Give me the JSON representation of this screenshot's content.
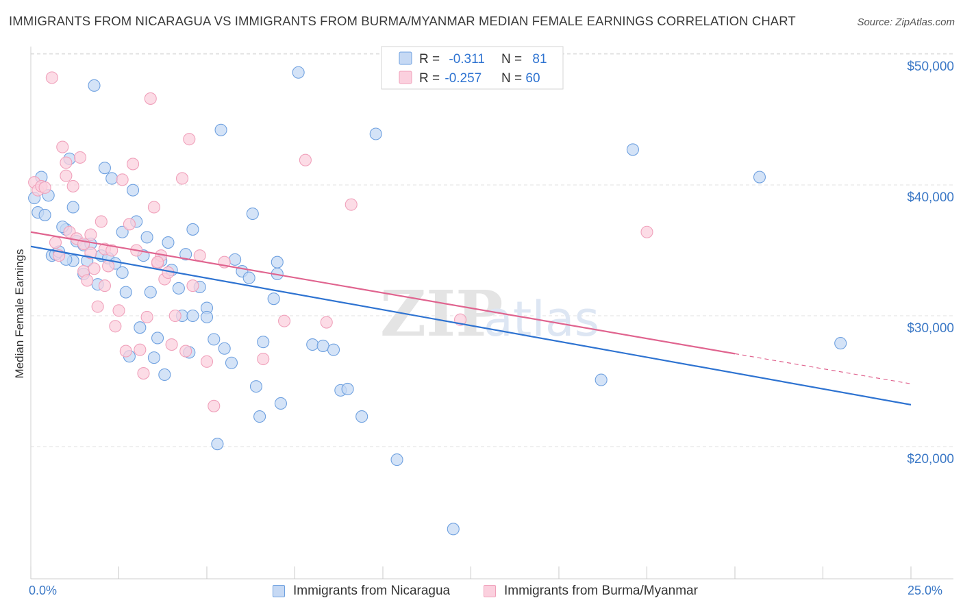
{
  "title": "IMMIGRANTS FROM NICARAGUA VS IMMIGRANTS FROM BURMA/MYANMAR MEDIAN FEMALE EARNINGS CORRELATION CHART",
  "source": "Source: ZipAtlas.com",
  "watermark": {
    "zip": "ZIP",
    "atlas": "atlas"
  },
  "stats_legend": [
    {
      "r_label": "R = ",
      "r_value": "-0.311",
      "n_label": "N = ",
      "n_value": "81"
    },
    {
      "r_label": "R = ",
      "r_value": "-0.257",
      "n_label": "N = ",
      "n_value": "60"
    }
  ],
  "x_axis": {
    "min_label": "0.0%",
    "max_label": "25.0%"
  },
  "chart_data": {
    "type": "scatter",
    "title": "IMMIGRANTS FROM NICARAGUA VS IMMIGRANTS FROM BURMA/MYANMAR MEDIAN FEMALE EARNINGS CORRELATION CHART",
    "xlabel": "",
    "ylabel": "Median Female Earnings",
    "xlim": [
      0,
      25
    ],
    "ylim": [
      11000,
      52000
    ],
    "y_ticks": [
      {
        "value": 20000,
        "label": "$20,000"
      },
      {
        "value": 30000,
        "label": "$30,000"
      },
      {
        "value": 40000,
        "label": "$40,000"
      },
      {
        "value": 50000,
        "label": "$50,000"
      }
    ],
    "legend_position": "bottom",
    "grid": true,
    "series": [
      {
        "name": "Immigrants from Nicaragua",
        "color": "#6fa1e0",
        "fill": "#c6d9f4",
        "trend_color": "#2e73d1",
        "trend": {
          "x_start": 0,
          "y_start": 35300,
          "x_end": 25,
          "y_end": 23200
        },
        "points": [
          [
            0.1,
            39000
          ],
          [
            0.2,
            37900
          ],
          [
            0.3,
            40600
          ],
          [
            0.4,
            37700
          ],
          [
            0.5,
            39200
          ],
          [
            0.6,
            34600
          ],
          [
            0.7,
            34700
          ],
          [
            0.8,
            34900
          ],
          [
            1.0,
            36600
          ],
          [
            1.1,
            42000
          ],
          [
            1.2,
            38300
          ],
          [
            1.2,
            34200
          ],
          [
            1.3,
            35700
          ],
          [
            1.5,
            33200
          ],
          [
            1.5,
            35400
          ],
          [
            1.6,
            34200
          ],
          [
            1.7,
            35500
          ],
          [
            1.8,
            47600
          ],
          [
            1.9,
            32400
          ],
          [
            2.0,
            34600
          ],
          [
            2.1,
            41300
          ],
          [
            2.2,
            34400
          ],
          [
            2.3,
            40500
          ],
          [
            2.4,
            34000
          ],
          [
            2.6,
            36400
          ],
          [
            2.6,
            33300
          ],
          [
            2.7,
            31800
          ],
          [
            2.8,
            26900
          ],
          [
            2.9,
            39600
          ],
          [
            3.0,
            37200
          ],
          [
            3.1,
            29100
          ],
          [
            3.2,
            34600
          ],
          [
            3.3,
            36000
          ],
          [
            3.4,
            31800
          ],
          [
            3.5,
            26800
          ],
          [
            3.6,
            28300
          ],
          [
            3.7,
            34200
          ],
          [
            3.8,
            25500
          ],
          [
            3.9,
            35600
          ],
          [
            4.0,
            33500
          ],
          [
            4.2,
            32100
          ],
          [
            4.3,
            30000
          ],
          [
            4.4,
            34700
          ],
          [
            4.5,
            27200
          ],
          [
            4.6,
            36600
          ],
          [
            4.6,
            30000
          ],
          [
            4.8,
            32200
          ],
          [
            5.0,
            30600
          ],
          [
            5.0,
            29900
          ],
          [
            5.2,
            28200
          ],
          [
            5.3,
            20200
          ],
          [
            5.4,
            44200
          ],
          [
            5.5,
            27500
          ],
          [
            5.7,
            26400
          ],
          [
            5.8,
            34300
          ],
          [
            6.0,
            33400
          ],
          [
            6.2,
            32900
          ],
          [
            6.3,
            37800
          ],
          [
            6.4,
            24600
          ],
          [
            6.5,
            22300
          ],
          [
            6.6,
            28000
          ],
          [
            6.9,
            31300
          ],
          [
            7.0,
            34100
          ],
          [
            7.0,
            33200
          ],
          [
            7.1,
            23300
          ],
          [
            7.6,
            48600
          ],
          [
            8.0,
            27800
          ],
          [
            8.3,
            27700
          ],
          [
            8.6,
            27400
          ],
          [
            8.8,
            24300
          ],
          [
            9.0,
            24400
          ],
          [
            9.4,
            22300
          ],
          [
            9.8,
            43900
          ],
          [
            10.4,
            19000
          ],
          [
            12.0,
            13700
          ],
          [
            16.2,
            25100
          ],
          [
            17.1,
            42700
          ],
          [
            20.7,
            40600
          ],
          [
            23.0,
            27900
          ],
          [
            0.9,
            36800
          ],
          [
            1.0,
            34300
          ]
        ]
      },
      {
        "name": "Immigrants from Burma/Myanmar",
        "color": "#f0a1bb",
        "fill": "#fbd0de",
        "trend_color": "#e0648f",
        "trend": {
          "x_start": 0,
          "y_start": 36400,
          "x_end": 20.0,
          "y_end": 27100,
          "dashed_x_end": 25,
          "dashed_y_end": 24800
        },
        "points": [
          [
            0.1,
            40200
          ],
          [
            0.2,
            39600
          ],
          [
            0.3,
            39900
          ],
          [
            0.4,
            39800
          ],
          [
            0.6,
            48200
          ],
          [
            0.7,
            35600
          ],
          [
            0.8,
            34600
          ],
          [
            0.9,
            42900
          ],
          [
            1.0,
            41700
          ],
          [
            1.1,
            36400
          ],
          [
            1.2,
            39900
          ],
          [
            1.3,
            35900
          ],
          [
            1.4,
            42100
          ],
          [
            1.5,
            33400
          ],
          [
            1.6,
            32700
          ],
          [
            1.7,
            36200
          ],
          [
            1.7,
            34800
          ],
          [
            1.8,
            33600
          ],
          [
            1.9,
            30700
          ],
          [
            2.0,
            37200
          ],
          [
            2.1,
            35100
          ],
          [
            2.2,
            33800
          ],
          [
            2.3,
            35000
          ],
          [
            2.4,
            29200
          ],
          [
            2.5,
            30400
          ],
          [
            2.6,
            40400
          ],
          [
            2.7,
            27300
          ],
          [
            2.8,
            37000
          ],
          [
            2.9,
            41600
          ],
          [
            3.0,
            35000
          ],
          [
            3.1,
            27400
          ],
          [
            3.2,
            25600
          ],
          [
            3.3,
            29900
          ],
          [
            3.4,
            46600
          ],
          [
            3.5,
            38300
          ],
          [
            3.6,
            34000
          ],
          [
            3.7,
            34600
          ],
          [
            3.8,
            32800
          ],
          [
            3.9,
            33300
          ],
          [
            4.0,
            27800
          ],
          [
            4.1,
            30000
          ],
          [
            4.3,
            40500
          ],
          [
            4.4,
            27300
          ],
          [
            4.5,
            43500
          ],
          [
            4.6,
            32300
          ],
          [
            4.8,
            34600
          ],
          [
            5.0,
            26500
          ],
          [
            5.2,
            23100
          ],
          [
            5.5,
            34100
          ],
          [
            6.6,
            26700
          ],
          [
            7.2,
            29600
          ],
          [
            7.8,
            41900
          ],
          [
            8.4,
            29500
          ],
          [
            9.1,
            38500
          ],
          [
            12.2,
            29700
          ],
          [
            17.5,
            36400
          ],
          [
            1.5,
            35500
          ],
          [
            2.1,
            32300
          ],
          [
            3.6,
            34100
          ],
          [
            1.0,
            40700
          ]
        ]
      }
    ]
  }
}
